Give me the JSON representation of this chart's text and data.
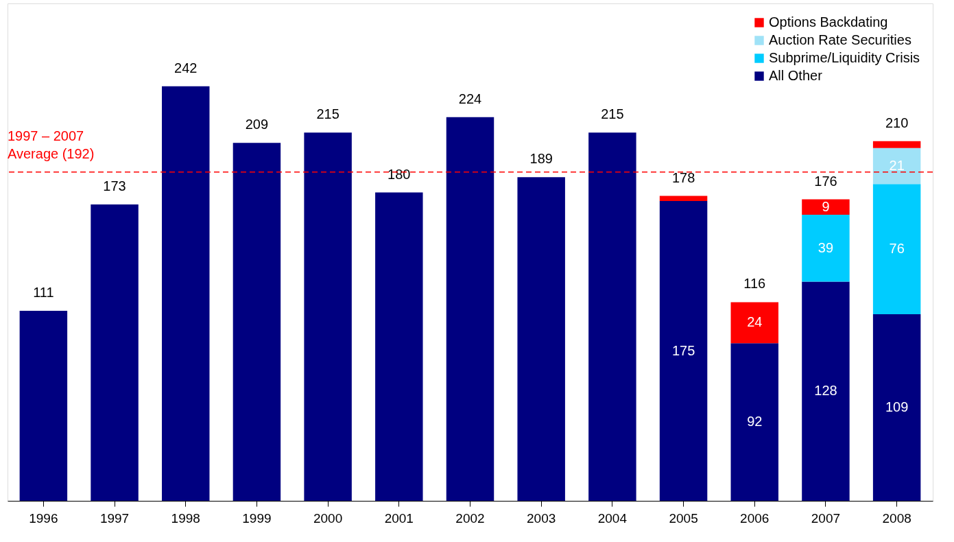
{
  "chart_data": {
    "type": "bar",
    "stacked": true,
    "categories": [
      "1996",
      "1997",
      "1998",
      "1999",
      "2000",
      "2001",
      "2002",
      "2003",
      "2004",
      "2005",
      "2006",
      "2007",
      "2008"
    ],
    "series": [
      {
        "name": "All Other",
        "color": "#000080",
        "values": [
          111,
          173,
          242,
          209,
          215,
          180,
          224,
          189,
          215,
          175,
          92,
          128,
          109
        ],
        "value_labels": [
          null,
          null,
          null,
          null,
          null,
          null,
          null,
          null,
          null,
          "175",
          "92",
          "128",
          "109"
        ]
      },
      {
        "name": "Subprime/Liquidity Crisis",
        "color": "#00ccff",
        "values": [
          null,
          null,
          null,
          null,
          null,
          null,
          null,
          null,
          null,
          null,
          null,
          39,
          76
        ],
        "value_labels": [
          null,
          null,
          null,
          null,
          null,
          null,
          null,
          null,
          null,
          null,
          null,
          "39",
          "76"
        ]
      },
      {
        "name": "Auction Rate Securities",
        "color": "#9fe2f7",
        "values": [
          null,
          null,
          null,
          null,
          null,
          null,
          null,
          null,
          null,
          null,
          null,
          null,
          21
        ],
        "value_labels": [
          null,
          null,
          null,
          null,
          null,
          null,
          null,
          null,
          null,
          null,
          null,
          null,
          "21"
        ]
      },
      {
        "name": "Options Backdating",
        "color": "#ff0000",
        "values": [
          null,
          null,
          null,
          null,
          null,
          null,
          null,
          null,
          null,
          3,
          24,
          9,
          4
        ],
        "value_labels": [
          null,
          null,
          null,
          null,
          null,
          null,
          null,
          null,
          null,
          null,
          "24",
          "9",
          null
        ]
      }
    ],
    "totals": [
      "111",
      "173",
      "242",
      "209",
      "215",
      "180",
      "224",
      "189",
      "215",
      "178",
      "116",
      "176",
      "210"
    ],
    "ref_lines": [
      {
        "axis": "y",
        "value": 192,
        "label": "1997 – 2007\nAverage (192)",
        "color": "#ff0000",
        "line_style": "dashed"
      }
    ],
    "legend": "top right",
    "grid": false
  }
}
